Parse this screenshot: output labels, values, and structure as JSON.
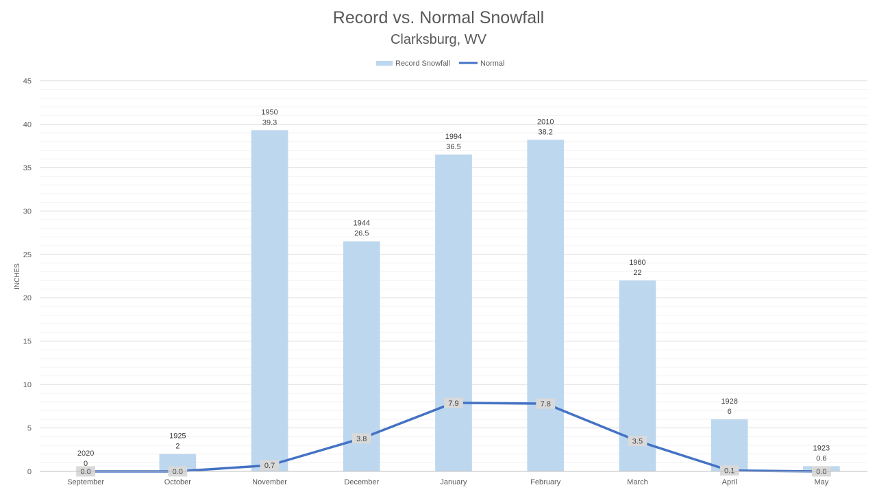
{
  "chart_data": {
    "type": "bar",
    "title": "Record vs. Normal Snowfall",
    "subtitle": "Clarksburg, WV",
    "ylabel": "INCHES",
    "xlabel": "",
    "ylim": [
      0,
      45
    ],
    "yticks": [
      0,
      5,
      10,
      15,
      20,
      25,
      30,
      35,
      40,
      45
    ],
    "grid": true,
    "legend_position": "top",
    "categories": [
      "September",
      "October",
      "November",
      "December",
      "January",
      "February",
      "March",
      "April",
      "May"
    ],
    "series": [
      {
        "name": "Record Snowfall",
        "type": "bar",
        "color": "#bdd7ee",
        "values": [
          0,
          2,
          39.3,
          26.5,
          36.5,
          38.2,
          22,
          6,
          0.6
        ],
        "record_years": [
          "2020",
          "1925",
          "1950",
          "1944",
          "1994",
          "2010",
          "1960",
          "1928",
          "1923"
        ],
        "labels": [
          "0",
          "2",
          "39.3",
          "26.5",
          "36.5",
          "38.2",
          "22",
          "6",
          "0.6"
        ]
      },
      {
        "name": "Normal",
        "type": "line",
        "color": "#4472c4",
        "values": [
          0.0,
          0.0,
          0.7,
          3.8,
          7.9,
          7.8,
          3.5,
          0.1,
          0.0
        ],
        "labels": [
          "0.0",
          "0.0",
          "0.7",
          "3.8",
          "7.9",
          "7.8",
          "3.5",
          "0.1",
          "0.0"
        ]
      }
    ]
  }
}
